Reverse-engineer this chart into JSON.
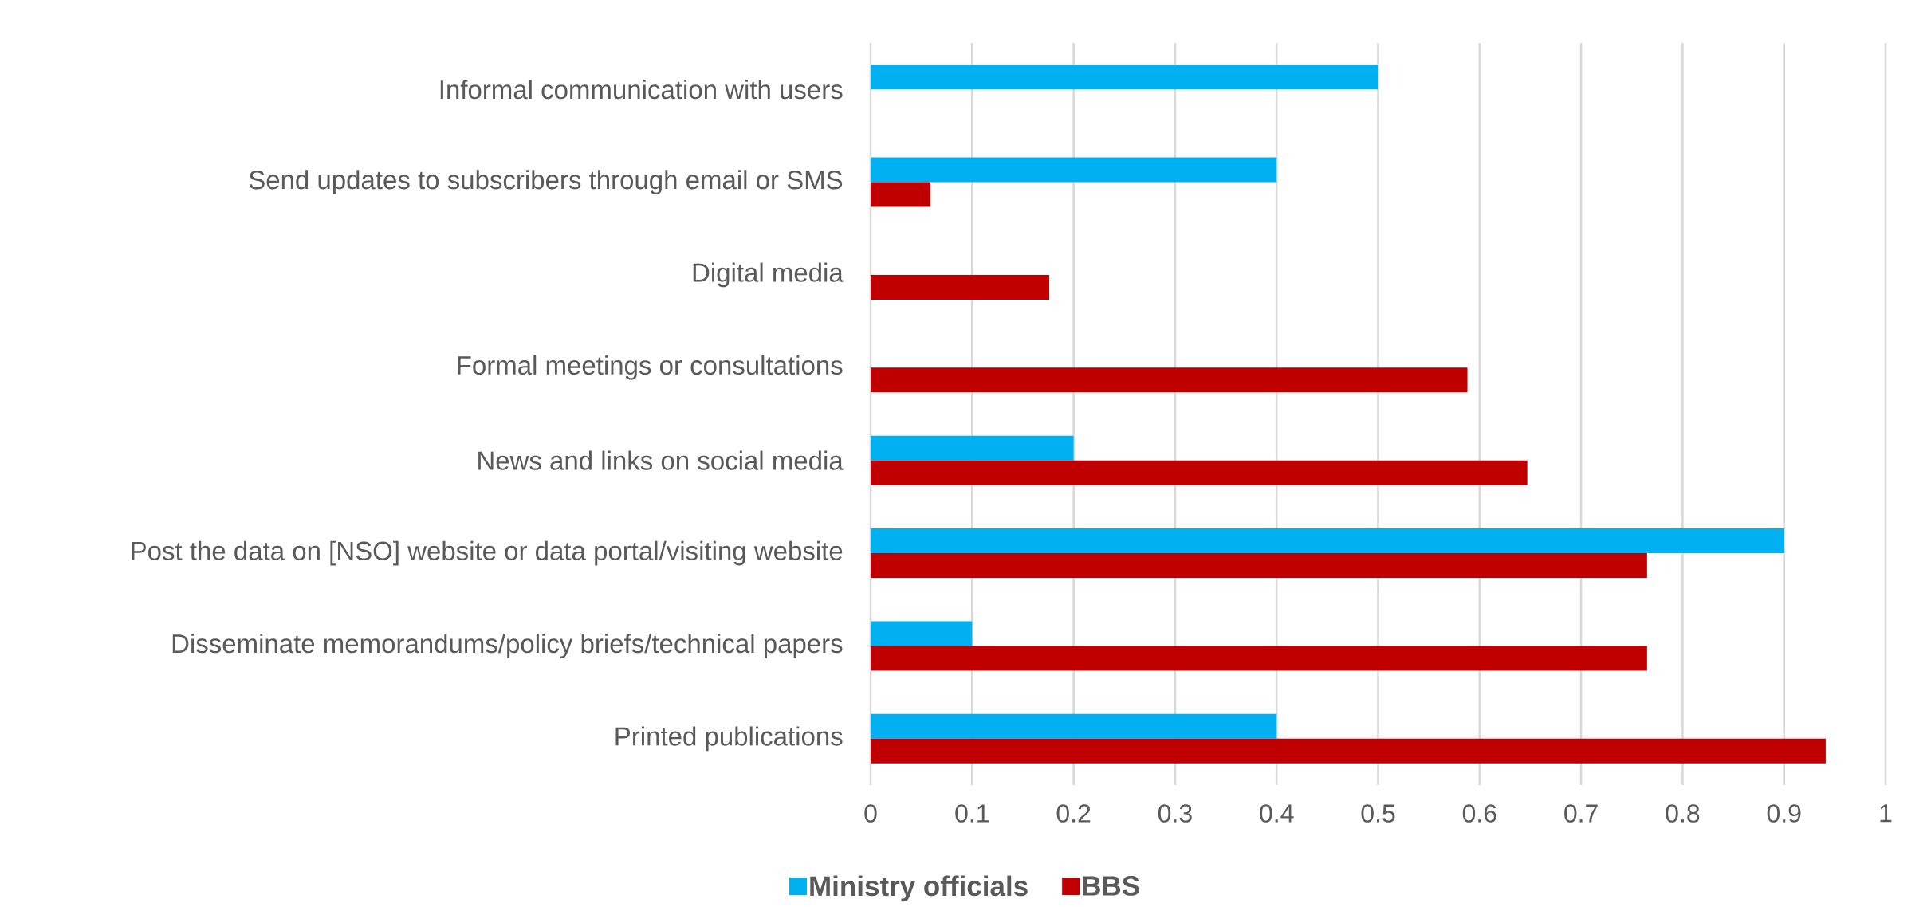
{
  "chart_data": {
    "type": "bar",
    "orientation": "horizontal",
    "categories": [
      "Informal communication with users",
      "Send updates to subscribers through email or SMS",
      "Digital media",
      "Formal meetings or consultations",
      "News and links on social media",
      "Post the data on [NSO] website or data portal/visiting website",
      "Disseminate memorandums/policy briefs/technical papers",
      "Printed publications"
    ],
    "series": [
      {
        "name": "Ministry officials",
        "color": "#00b0f0",
        "values": [
          0.5,
          0.4,
          null,
          null,
          0.2,
          0.9,
          0.1,
          0.4
        ]
      },
      {
        "name": "BBS",
        "color": "#c00000",
        "values": [
          null,
          0.059,
          0.176,
          0.588,
          0.647,
          0.765,
          0.765,
          0.941
        ]
      }
    ],
    "xlim": [
      0,
      1
    ],
    "xticks": [
      0,
      0.1,
      0.2,
      0.3,
      0.4,
      0.5,
      0.6,
      0.7,
      0.8,
      0.9,
      1
    ],
    "grid": "x",
    "legend": "bottom"
  }
}
